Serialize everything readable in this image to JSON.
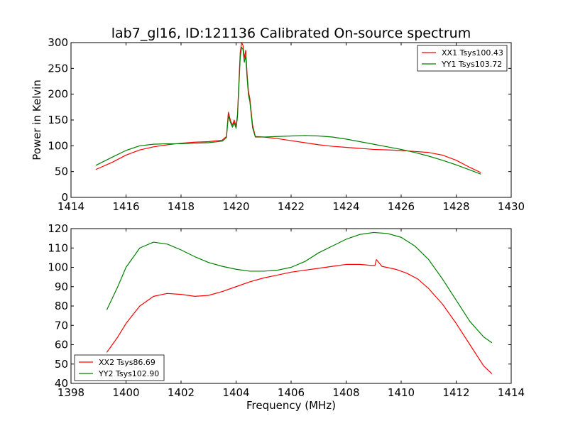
{
  "title": "lab7_gl16, ID:121136 Calibrated On-source spectrum",
  "colors": {
    "red": "#ff0000",
    "green": "#008000"
  },
  "chart_data": [
    {
      "type": "line",
      "ylabel": "Power in Kelvin",
      "xlabel": "",
      "xlim": [
        1414,
        1430
      ],
      "ylim": [
        0,
        300
      ],
      "xticks": [
        "1414",
        "1416",
        "1418",
        "1420",
        "1422",
        "1424",
        "1426",
        "1428",
        "1430"
      ],
      "yticks": [
        "0",
        "50",
        "100",
        "150",
        "200",
        "250",
        "300"
      ],
      "legend_position": "top-right",
      "series": [
        {
          "name": "XX1 Tsys100.43",
          "color": "#ff0000",
          "x": [
            1414.9,
            1415.5,
            1416.0,
            1416.5,
            1417.0,
            1417.5,
            1418.0,
            1418.5,
            1419.0,
            1419.5,
            1419.65,
            1419.72,
            1419.8,
            1419.87,
            1419.93,
            1420.0,
            1420.05,
            1420.1,
            1420.15,
            1420.2,
            1420.25,
            1420.3,
            1420.35,
            1420.4,
            1420.45,
            1420.5,
            1420.6,
            1420.7,
            1421.0,
            1421.5,
            1422.0,
            1422.5,
            1423.0,
            1423.5,
            1424.0,
            1424.5,
            1425.0,
            1425.5,
            1426.0,
            1426.5,
            1427.0,
            1427.5,
            1428.0,
            1428.5,
            1428.9
          ],
          "y": [
            54,
            68,
            82,
            92,
            98,
            102,
            105,
            107,
            108,
            111,
            118,
            165,
            148,
            140,
            150,
            138,
            160,
            220,
            280,
            300,
            295,
            270,
            285,
            240,
            205,
            192,
            140,
            118,
            117,
            114,
            110,
            106,
            102,
            99,
            97,
            95,
            93,
            92,
            91,
            89,
            87,
            82,
            72,
            58,
            48
          ]
        },
        {
          "name": "YY1 Tsys103.72",
          "color": "#008000",
          "x": [
            1414.9,
            1415.5,
            1416.0,
            1416.5,
            1417.0,
            1417.5,
            1418.0,
            1418.5,
            1419.0,
            1419.5,
            1419.65,
            1419.72,
            1419.8,
            1419.87,
            1419.93,
            1420.0,
            1420.05,
            1420.1,
            1420.15,
            1420.2,
            1420.25,
            1420.3,
            1420.35,
            1420.4,
            1420.45,
            1420.5,
            1420.6,
            1420.7,
            1421.0,
            1421.5,
            1422.0,
            1422.5,
            1423.0,
            1423.5,
            1424.0,
            1424.5,
            1425.0,
            1425.5,
            1426.0,
            1426.5,
            1427.0,
            1427.5,
            1428.0,
            1428.5,
            1428.9
          ],
          "y": [
            62,
            78,
            91,
            100,
            103,
            104,
            104,
            105,
            106,
            109,
            116,
            158,
            145,
            136,
            145,
            134,
            155,
            212,
            270,
            291,
            287,
            262,
            275,
            232,
            198,
            186,
            135,
            117,
            117,
            118,
            119,
            120,
            119,
            117,
            113,
            108,
            103,
            98,
            93,
            87,
            80,
            72,
            63,
            53,
            45
          ]
        }
      ]
    },
    {
      "type": "line",
      "ylabel": "",
      "xlabel": "Frequency (MHz)",
      "xlim": [
        1398,
        1414
      ],
      "ylim": [
        40,
        120
      ],
      "xticks": [
        "1398",
        "1400",
        "1402",
        "1404",
        "1406",
        "1408",
        "1410",
        "1412",
        "1414"
      ],
      "yticks": [
        "40",
        "50",
        "60",
        "70",
        "80",
        "90",
        "100",
        "110",
        "120"
      ],
      "legend_position": "bottom-left",
      "series": [
        {
          "name": "XX2 Tsys86.69",
          "color": "#ff0000",
          "x": [
            1399.3,
            1399.7,
            1400.0,
            1400.5,
            1401.0,
            1401.5,
            1402.0,
            1402.5,
            1403.0,
            1403.5,
            1404.0,
            1404.5,
            1405.0,
            1405.5,
            1406.0,
            1406.5,
            1407.0,
            1407.5,
            1408.0,
            1408.5,
            1408.9,
            1409.05,
            1409.1,
            1409.3,
            1409.8,
            1410.2,
            1410.6,
            1411.0,
            1411.5,
            1412.0,
            1412.5,
            1413.0,
            1413.3
          ],
          "y": [
            56,
            64,
            71,
            80,
            85,
            86.5,
            86,
            85,
            85.5,
            87.5,
            90,
            92.5,
            94.5,
            96,
            97.5,
            98.5,
            99.5,
            100.5,
            101.5,
            101.5,
            101,
            101,
            104,
            100.5,
            99,
            97,
            94,
            89,
            81,
            71,
            60,
            49,
            45
          ]
        },
        {
          "name": "YY2 Tsys102.90",
          "color": "#008000",
          "x": [
            1399.3,
            1399.7,
            1400.0,
            1400.5,
            1401.0,
            1401.5,
            1402.0,
            1402.5,
            1403.0,
            1403.5,
            1404.0,
            1404.5,
            1405.0,
            1405.5,
            1406.0,
            1406.5,
            1407.0,
            1407.5,
            1408.0,
            1408.5,
            1409.0,
            1409.5,
            1410.0,
            1410.5,
            1411.0,
            1411.5,
            1412.0,
            1412.5,
            1413.0,
            1413.3
          ],
          "y": [
            78,
            90,
            100,
            110,
            113,
            112,
            109,
            105.5,
            102.5,
            100.5,
            99,
            98,
            98,
            98.5,
            100,
            103,
            107.5,
            111,
            114.5,
            117,
            118,
            117.5,
            115.5,
            111,
            104,
            94,
            83,
            72,
            64,
            61
          ]
        }
      ]
    }
  ]
}
